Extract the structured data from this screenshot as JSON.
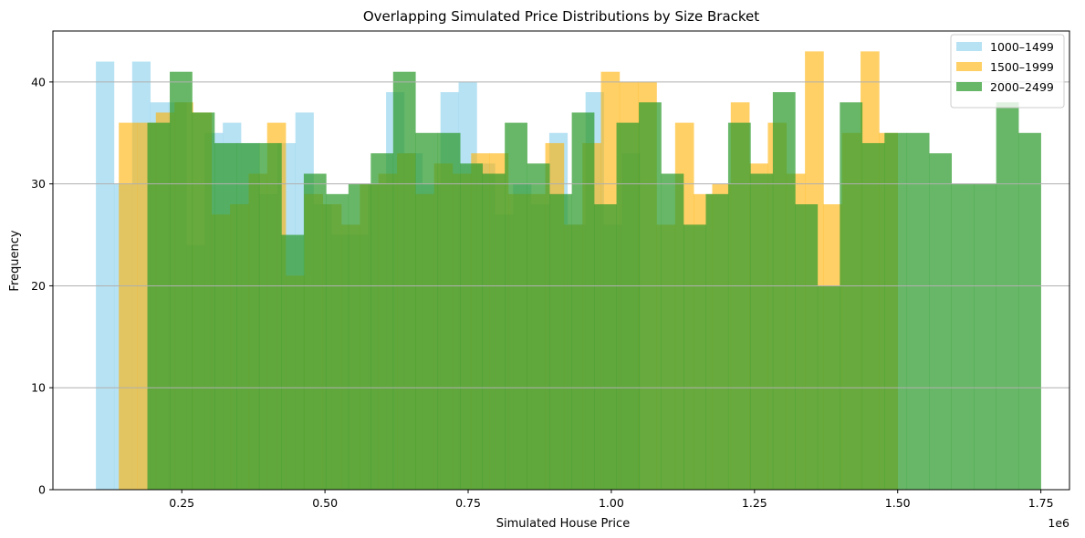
{
  "chart_data": {
    "type": "histogram",
    "title": "Overlapping Simulated Price Distributions by Size Bracket",
    "xlabel": "Simulated House Price",
    "ylabel": "Frequency",
    "x_offset_label": "1e6",
    "xlim": [
      0.025,
      1.8
    ],
    "ylim": [
      0,
      45
    ],
    "x_ticks": [
      0.25,
      0.5,
      0.75,
      1.0,
      1.25,
      1.5,
      1.75
    ],
    "x_tick_labels": [
      "0.25",
      "0.50",
      "0.75",
      "1.00",
      "1.25",
      "1.50",
      "1.75"
    ],
    "y_ticks": [
      0,
      10,
      20,
      30,
      40
    ],
    "y_tick_labels": [
      "0",
      "10",
      "20",
      "30",
      "40"
    ],
    "grid": "y-axis",
    "legend_position": "top-right",
    "series": [
      {
        "name": "1000–1499",
        "color": "#87CEEB",
        "opacity": 0.6,
        "bin_start": 0.1,
        "bin_end": 1.05,
        "counts": [
          42,
          30,
          42,
          38,
          38,
          24,
          35,
          36,
          34,
          29,
          34,
          37,
          28,
          25,
          25,
          30,
          39,
          33,
          30,
          39,
          40,
          32,
          27,
          30,
          28,
          35,
          26,
          39,
          26,
          33
        ]
      },
      {
        "name": "1500–1999",
        "color": "#FFB000",
        "opacity": 0.6,
        "bin_start": 0.14,
        "bin_end": 1.5,
        "counts": [
          36,
          36,
          37,
          38,
          37,
          27,
          28,
          31,
          36,
          21,
          29,
          28,
          26,
          30,
          31,
          33,
          29,
          32,
          31,
          33,
          33,
          29,
          29,
          34,
          26,
          34,
          41,
          40,
          40,
          26,
          36,
          29,
          30,
          38,
          32,
          36,
          31,
          43,
          28,
          35,
          43,
          35
        ]
      },
      {
        "name": "2000–2499",
        "color": "#2E9B2E",
        "opacity": 0.72,
        "bin_start": 0.19,
        "bin_end": 1.75,
        "counts": [
          36,
          41,
          37,
          34,
          34,
          34,
          25,
          31,
          29,
          30,
          33,
          41,
          35,
          35,
          32,
          31,
          36,
          32,
          29,
          37,
          28,
          36,
          38,
          31,
          26,
          29,
          36,
          31,
          39,
          28,
          20,
          38,
          34,
          35,
          35,
          33,
          30,
          30,
          38,
          35
        ]
      }
    ]
  }
}
